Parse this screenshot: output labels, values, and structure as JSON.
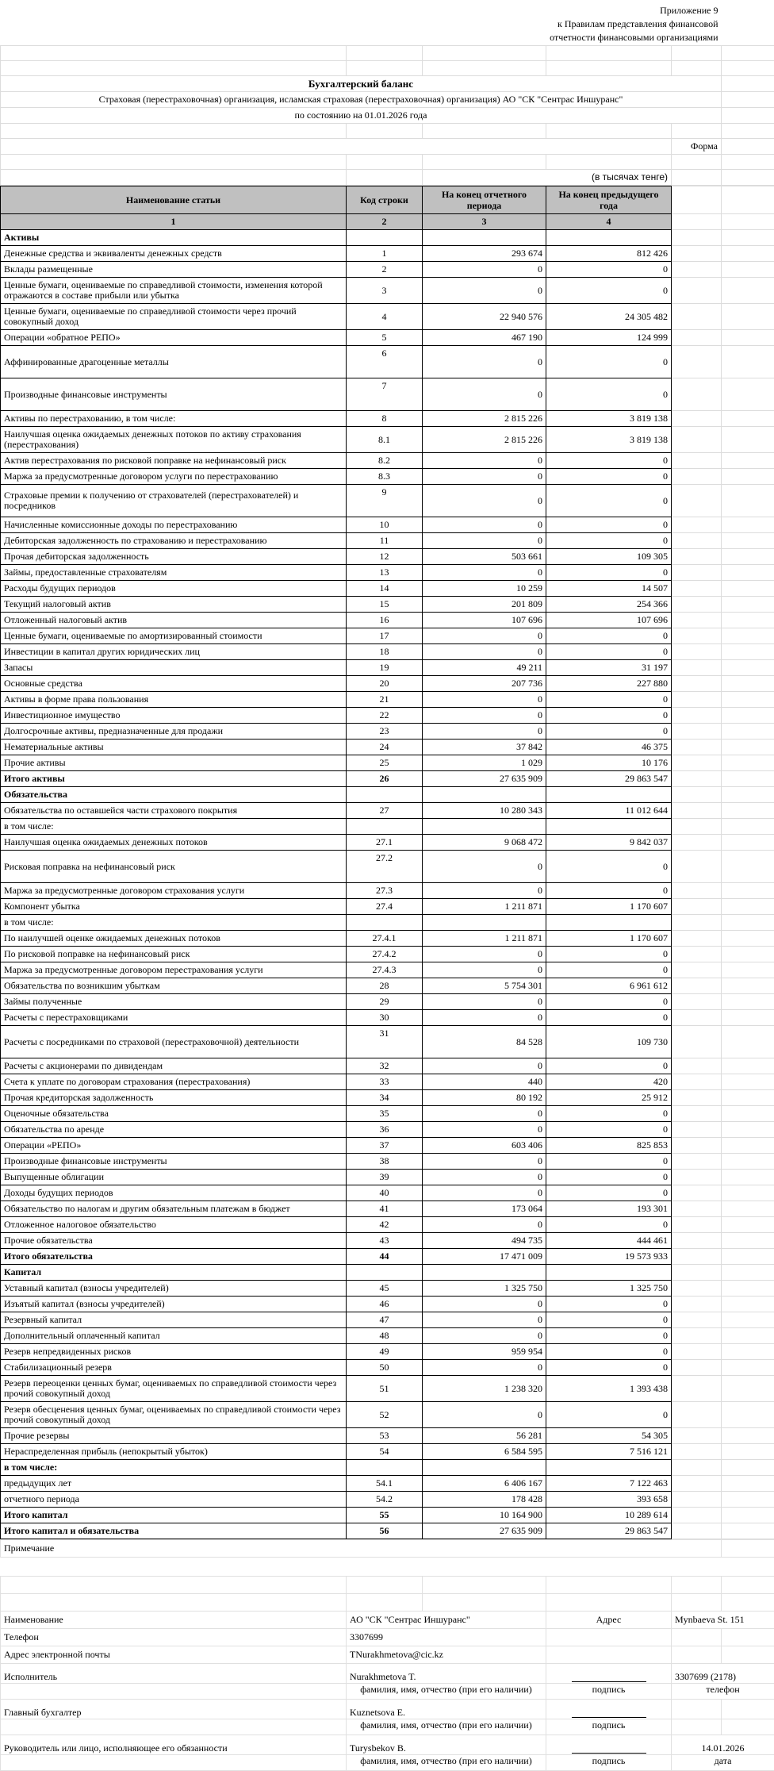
{
  "header": {
    "appendix_lines": [
      "Приложение 9",
      "к Правилам представления финансовой",
      "отчетности финансовыми организациями"
    ],
    "title": "Бухгалтерский баланс",
    "subtitle": "Страховая (перестраховочная) организация, исламская страховая (перестраховочная) организация) АО \"СК \"Сентрас Иншуранс\"",
    "date_line": "по состоянию на 01.01.2026 года",
    "form_label": "Форма",
    "units_label": "(в тысячах тенге)"
  },
  "table": {
    "columns": [
      "Наименование статьи",
      "Код строки",
      "На конец отчетного периода",
      "На конец предыдущего года"
    ],
    "column_numbers": [
      "1",
      "2",
      "3",
      "4"
    ],
    "rows": [
      {
        "name": "Активы",
        "code": "",
        "v1": "",
        "v2": "",
        "style": "section"
      },
      {
        "name": "Денежные средства и эквиваленты денежных средств",
        "code": "1",
        "v1": "293 674",
        "v2": "812 426"
      },
      {
        "name": "Вклады размещенные",
        "code": "2",
        "v1": "0",
        "v2": "0"
      },
      {
        "name": "Ценные бумаги, оцениваемые по справедливой стоимости, изменения которой отражаются в составе прибыли или убытка",
        "code": "3",
        "v1": "0",
        "v2": "0",
        "h": "d"
      },
      {
        "name": "Ценные бумаги, оцениваемые по справедливой стоимости через прочий совокупный доход",
        "code": "4",
        "v1": "22 940 576",
        "v2": "24 305 482",
        "h": "d"
      },
      {
        "name": "Операции «обратное РЕПО»",
        "code": "5",
        "v1": "467 190",
        "v2": "124 999"
      },
      {
        "name": "Аффинированные драгоценные металлы",
        "code": "6",
        "v1": "0",
        "v2": "0",
        "h": "t"
      },
      {
        "name": "Производные финансовые инструменты",
        "code": "7",
        "v1": "0",
        "v2": "0",
        "h": "t"
      },
      {
        "name": "Активы по перестрахованию, в том числе:",
        "code": "8",
        "v1": "2 815 226",
        "v2": "3 819 138"
      },
      {
        "name": "Наилучшая оценка ожидаемых денежных потоков по активу страхования (перестрахования)",
        "code": "8.1",
        "v1": "2 815 226",
        "v2": "3 819 138",
        "h": "d"
      },
      {
        "name": "Актив перестрахования по рисковой поправке на нефинансовый риск",
        "code": "8.2",
        "v1": "0",
        "v2": "0"
      },
      {
        "name": "Маржа за предусмотренные договором услуги по перестрахованию",
        "code": "8.3",
        "v1": "0",
        "v2": "0"
      },
      {
        "name": "Страховые премии к получению от страхователей (перестрахователей) и посредников",
        "code": "9",
        "v1": "0",
        "v2": "0",
        "h": "t"
      },
      {
        "name": "Начисленные комиссионные доходы по перестрахованию",
        "code": "10",
        "v1": "0",
        "v2": "0"
      },
      {
        "name": "Дебиторская задолженность по страхованию и перестрахованию",
        "code": "11",
        "v1": "0",
        "v2": "0"
      },
      {
        "name": "Прочая дебиторская задолженность",
        "code": "12",
        "v1": "503 661",
        "v2": "109 305"
      },
      {
        "name": "Займы, предоставленные страхователям",
        "code": "13",
        "v1": "0",
        "v2": "0"
      },
      {
        "name": "Расходы будущих периодов",
        "code": "14",
        "v1": "10 259",
        "v2": "14 507"
      },
      {
        "name": "Текущий налоговый актив",
        "code": "15",
        "v1": "201 809",
        "v2": "254 366"
      },
      {
        "name": "Отложенный налоговый актив",
        "code": "16",
        "v1": "107 696",
        "v2": "107 696"
      },
      {
        "name": "Ценные бумаги, оцениваемые по амортизированный стоимости",
        "code": "17",
        "v1": "0",
        "v2": "0"
      },
      {
        "name": "Инвестиции в капитал других юридических лиц",
        "code": "18",
        "v1": "0",
        "v2": "0"
      },
      {
        "name": "Запасы",
        "code": "19",
        "v1": "49 211",
        "v2": "31 197"
      },
      {
        "name": "Основные средства",
        "code": "20",
        "v1": "207 736",
        "v2": "227 880"
      },
      {
        "name": "Активы в форме права пользования",
        "code": "21",
        "v1": "0",
        "v2": "0"
      },
      {
        "name": "Инвестиционное имущество",
        "code": "22",
        "v1": "0",
        "v2": "0"
      },
      {
        "name": "Долгосрочные активы, предназначенные для продажи",
        "code": "23",
        "v1": "0",
        "v2": "0"
      },
      {
        "name": "Нематериальные активы",
        "code": "24",
        "v1": "37 842",
        "v2": "46 375"
      },
      {
        "name": "Прочие активы",
        "code": "25",
        "v1": "1 029",
        "v2": "10 176"
      },
      {
        "name": "Итого активы",
        "code": "26",
        "v1": "27 635 909",
        "v2": "29 863 547",
        "style": "total"
      },
      {
        "name": "Обязательства",
        "code": "",
        "v1": "",
        "v2": "",
        "style": "section"
      },
      {
        "name": "Обязательства по оставшейся части страхового покрытия",
        "code": "27",
        "v1": "10 280 343",
        "v2": "11 012 644"
      },
      {
        "name": "в том числе:",
        "code": "",
        "v1": "",
        "v2": "",
        "style": "sub"
      },
      {
        "name": "Наилучшая оценка ожидаемых денежных потоков",
        "code": "27.1",
        "v1": "9 068 472",
        "v2": "9 842 037"
      },
      {
        "name": "Рисковая поправка на нефинансовый риск",
        "code": "27.2",
        "v1": "0",
        "v2": "0",
        "h": "t"
      },
      {
        "name": "Маржа за предусмотренные договором страхования услуги",
        "code": "27.3",
        "v1": "0",
        "v2": "0"
      },
      {
        "name": "Компонент убытка",
        "code": "27.4",
        "v1": "1 211 871",
        "v2": "1 170 607"
      },
      {
        "name": "в том числе:",
        "code": "",
        "v1": "",
        "v2": "",
        "style": "sub"
      },
      {
        "name": "По наилучшей оценке ожидаемых денежных потоков",
        "code": "27.4.1",
        "v1": "1 211 871",
        "v2": "1 170 607"
      },
      {
        "name": "По рисковой поправке на нефинансовый риск",
        "code": "27.4.2",
        "v1": "0",
        "v2": "0"
      },
      {
        "name": "Маржа за предусмотренные договором перестрахования услуги",
        "code": "27.4.3",
        "v1": "0",
        "v2": "0"
      },
      {
        "name": "Обязательства по возникшим убыткам",
        "code": "28",
        "v1": "5 754 301",
        "v2": "6 961 612"
      },
      {
        "name": "Займы полученные",
        "code": "29",
        "v1": "0",
        "v2": "0"
      },
      {
        "name": "Расчеты с перестраховщиками",
        "code": "30",
        "v1": "0",
        "v2": "0"
      },
      {
        "name": "Расчеты с посредниками по страховой (перестраховочной) деятельности",
        "code": "31",
        "v1": "84 528",
        "v2": "109 730",
        "h": "t"
      },
      {
        "name": "Расчеты с акционерами по дивидендам",
        "code": "32",
        "v1": "0",
        "v2": "0"
      },
      {
        "name": "Счета к уплате по договорам страхования (перестрахования)",
        "code": "33",
        "v1": "440",
        "v2": "420"
      },
      {
        "name": "Прочая кредиторская задолженность",
        "code": "34",
        "v1": "80 192",
        "v2": "25 912"
      },
      {
        "name": "Оценочные обязательства",
        "code": "35",
        "v1": "0",
        "v2": "0"
      },
      {
        "name": "Обязательства по аренде",
        "code": "36",
        "v1": "0",
        "v2": "0"
      },
      {
        "name": "Операции «РЕПО»",
        "code": "37",
        "v1": "603 406",
        "v2": "825 853"
      },
      {
        "name": "Производные финансовые инструменты",
        "code": "38",
        "v1": "0",
        "v2": "0"
      },
      {
        "name": "Выпущенные облигации",
        "code": "39",
        "v1": "0",
        "v2": "0"
      },
      {
        "name": "Доходы будущих периодов",
        "code": "40",
        "v1": "0",
        "v2": "0"
      },
      {
        "name": "Обязательство по налогам и другим обязательным платежам в бюджет",
        "code": "41",
        "v1": "173 064",
        "v2": "193 301"
      },
      {
        "name": "Отложенное налоговое обязательство",
        "code": "42",
        "v1": "0",
        "v2": "0"
      },
      {
        "name": "Прочие обязательства",
        "code": "43",
        "v1": "494 735",
        "v2": "444 461"
      },
      {
        "name": "Итого обязательства",
        "code": "44",
        "v1": "17 471 009",
        "v2": "19 573 933",
        "style": "total"
      },
      {
        "name": "Капитал",
        "code": "",
        "v1": "",
        "v2": "",
        "style": "section"
      },
      {
        "name": "Уставный капитал (взносы учредителей)",
        "code": "45",
        "v1": "1 325 750",
        "v2": "1 325 750"
      },
      {
        "name": "Изъятый капитал (взносы учредителей)",
        "code": "46",
        "v1": "0",
        "v2": "0"
      },
      {
        "name": "Резервный капитал",
        "code": "47",
        "v1": "0",
        "v2": "0"
      },
      {
        "name": "Дополнительный оплаченный капитал",
        "code": "48",
        "v1": "0",
        "v2": "0"
      },
      {
        "name": "Резерв непредвиденных рисков",
        "code": "49",
        "v1": "959 954",
        "v2": "0"
      },
      {
        "name": "Стабилизационный резерв",
        "code": "50",
        "v1": "0",
        "v2": "0"
      },
      {
        "name": "Резерв переоценки ценных бумаг, оцениваемых по справедливой стоимости через прочий совокупный доход",
        "code": "51",
        "v1": "1 238 320",
        "v2": "1 393 438",
        "h": "d"
      },
      {
        "name": "Резерв обесценения ценных бумаг, оцениваемых по справедливой стоимости через прочий совокупный доход",
        "code": "52",
        "v1": "0",
        "v2": "0",
        "h": "d"
      },
      {
        "name": "Прочие резервы",
        "code": "53",
        "v1": "56 281",
        "v2": "54 305"
      },
      {
        "name": "Нераспределенная прибыль (непокрытый убыток)",
        "code": "54",
        "v1": "6 584 595",
        "v2": "7 516 121"
      },
      {
        "name": "в том числе:",
        "code": "",
        "v1": "",
        "v2": "",
        "style": "subb"
      },
      {
        "name": "предыдущих лет",
        "code": "54.1",
        "v1": "6 406 167",
        "v2": "7 122 463"
      },
      {
        "name": "отчетного периода",
        "code": "54.2",
        "v1": "178 428",
        "v2": "393 658"
      },
      {
        "name": "Итого капитал",
        "code": "55",
        "v1": "10 164 900",
        "v2": "10 289 614",
        "style": "total"
      },
      {
        "name": "Итого капитал и обязательства",
        "code": "56",
        "v1": "27 635 909",
        "v2": "29 863 547",
        "style": "total"
      }
    ]
  },
  "footer": {
    "note_label": "Примечание",
    "org_label": "Наименование",
    "org_value": "АО \"СК \"Сентрас Иншуранс\"",
    "address_label": "Адрес",
    "address_value": "Mynbaeva St. 151",
    "phone_label": "Телефон",
    "phone_value": "3307699",
    "email_label": "Адрес электронной почты",
    "email_value": "TNurakhmetova@cic.kz",
    "executor_label": "Исполнитель",
    "executor_name": "Nurakhmetova T.",
    "executor_phone": "3307699 (2178)",
    "fio_caption": "фамилия, имя, отчество (при его наличии)",
    "sign_caption": "подпись",
    "phone_caption": "телефон",
    "chief_label": "Главный бухгалтер",
    "chief_name": "Kuznetsova E.",
    "head_label": "Руководитель или лицо, исполняющее его обязанности",
    "head_name": "Turysbekov B.",
    "date_value": "14.01.2026",
    "date_caption": "дата"
  }
}
